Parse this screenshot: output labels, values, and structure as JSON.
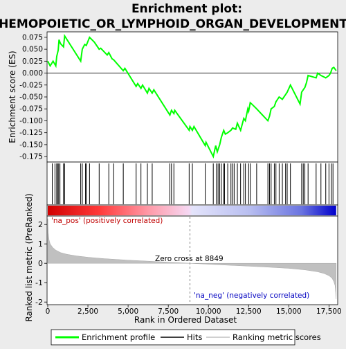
{
  "chart_data": {
    "type": "line",
    "title_line1": "Enrichment plot:",
    "title_line2": "HEMOPOIETIC_OR_LYMPHOID_ORGAN_DEVELOPMENT",
    "es_panel": {
      "ylabel": "Enrichment score (ES)",
      "yticks": [
        "0.075",
        "0.050",
        "0.025",
        "0.000",
        "-0.025",
        "-0.050",
        "-0.075",
        "-0.100",
        "-0.125",
        "-0.150",
        "-0.175"
      ],
      "ylim": [
        -0.185,
        0.085
      ],
      "series": [
        {
          "name": "Enrichment profile",
          "color": "#00ff00",
          "x": [
            0,
            150,
            330,
            500,
            560,
            650,
            700,
            790,
            980,
            1050,
            2050,
            2150,
            2300,
            2400,
            2600,
            2900,
            3200,
            3300,
            3700,
            3800,
            4000,
            4100,
            4700,
            4800,
            5500,
            5600,
            5800,
            5900,
            6200,
            6300,
            6500,
            6600,
            7600,
            7700,
            7850,
            7900,
            8800,
            8850,
            9000,
            9100,
            9800,
            9850,
            10300,
            10450,
            10550,
            10700,
            10800,
            10950,
            11050,
            11200,
            11400,
            11500,
            11700,
            11800,
            12000,
            12200,
            12300,
            12450,
            12500,
            12600,
            12700,
            13000,
            13700,
            13800,
            13900,
            14100,
            14200,
            14400,
            14600,
            14800,
            14900,
            15100,
            15700,
            15800,
            15900,
            16000,
            16100,
            16200,
            16700,
            16800,
            17000,
            17300,
            17500,
            17600,
            17700,
            17800,
            17950
          ],
          "y": [
            0.025,
            0.015,
            0.025,
            0.015,
            0.035,
            0.048,
            0.07,
            0.062,
            0.055,
            0.078,
            0.025,
            0.05,
            0.06,
            0.058,
            0.075,
            0.065,
            0.05,
            0.052,
            0.038,
            0.043,
            0.03,
            0.028,
            0.005,
            0.01,
            -0.028,
            -0.022,
            -0.032,
            -0.025,
            -0.042,
            -0.032,
            -0.042,
            -0.035,
            -0.088,
            -0.078,
            -0.085,
            -0.078,
            -0.12,
            -0.112,
            -0.12,
            -0.112,
            -0.152,
            -0.145,
            -0.175,
            -0.152,
            -0.165,
            -0.15,
            -0.135,
            -0.12,
            -0.128,
            -0.125,
            -0.12,
            -0.115,
            -0.118,
            -0.105,
            -0.12,
            -0.095,
            -0.1,
            -0.075,
            -0.08,
            -0.062,
            -0.065,
            -0.075,
            -0.1,
            -0.09,
            -0.075,
            -0.07,
            -0.06,
            -0.05,
            -0.055,
            -0.045,
            -0.04,
            -0.025,
            -0.065,
            -0.04,
            -0.035,
            -0.03,
            -0.02,
            -0.005,
            -0.01,
            0.0,
            -0.005,
            -0.01,
            -0.005,
            0.0,
            0.01,
            0.012,
            0.005
          ]
        }
      ]
    },
    "hits": {
      "name": "Hits",
      "x": [
        280,
        450,
        560,
        600,
        680,
        760,
        980,
        1050,
        2050,
        2150,
        2350,
        2400,
        2600,
        3200,
        3800,
        4100,
        4700,
        5500,
        5800,
        6200,
        6500,
        7600,
        7700,
        7850,
        8800,
        9000,
        9800,
        10300,
        10500,
        10600,
        10700,
        10800,
        10950,
        11000,
        11200,
        11400,
        11500,
        11600,
        11800,
        12000,
        12200,
        12300,
        12500,
        12600,
        13000,
        13700,
        13800,
        13900,
        14100,
        14200,
        14400,
        14600,
        14800,
        14900,
        15100,
        15800,
        15900,
        16000,
        16200,
        16700,
        17000,
        17300,
        17500,
        17650,
        17750
      ]
    },
    "ranked_panel": {
      "ylabel": "Ranked list metric (PreRanked)",
      "xlabel": "Rank in Ordered Dataset",
      "yticks": [
        "2",
        "1",
        "0",
        "-1",
        "-2"
      ],
      "xticks": [
        "0",
        "2,500",
        "5,000",
        "7,500",
        "10,000",
        "12,500",
        "15,000",
        "17,500"
      ],
      "ylim": [
        -2.1,
        2.4
      ],
      "xlim": [
        0,
        18000
      ],
      "zero_cross_label": "Zero cross at 8849",
      "zero_cross": 8849,
      "pos_label": "'na_pos' (positively correlated)",
      "neg_label": "'na_neg' (negatively correlated)",
      "series": [
        {
          "name": "Ranking metric scores",
          "color": "#c0c0c0",
          "x": [
            0,
            30,
            80,
            150,
            300,
            500,
            800,
            1200,
            1800,
            2500,
            3500,
            5000,
            7000,
            8849,
            10500,
            12000,
            13500,
            15000,
            16000,
            16800,
            17200,
            17500,
            17700,
            17800,
            17880,
            17920,
            17950
          ],
          "y": [
            2.3,
            1.6,
            1.2,
            1.0,
            0.82,
            0.68,
            0.55,
            0.46,
            0.38,
            0.31,
            0.24,
            0.16,
            0.08,
            0.0,
            -0.07,
            -0.13,
            -0.19,
            -0.26,
            -0.34,
            -0.44,
            -0.53,
            -0.64,
            -0.78,
            -0.95,
            -1.15,
            -1.5,
            -1.85
          ]
        }
      ]
    },
    "legend": {
      "items": [
        {
          "label": "Enrichment profile",
          "color": "#00ff00"
        },
        {
          "label": "Hits",
          "color": "#000000"
        },
        {
          "label": "Ranking metric scores",
          "color": "#c0c0c0"
        }
      ]
    }
  }
}
